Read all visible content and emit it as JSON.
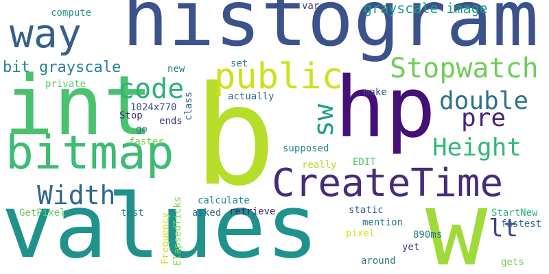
{
  "words": [
    {
      "id": "values",
      "text": "values",
      "color": "#20928c"
    },
    {
      "id": "histogram",
      "text": "histogram",
      "color": "#3b528b"
    },
    {
      "id": "b",
      "text": "b",
      "color": "#b5de2b"
    },
    {
      "id": "hp",
      "text": "hp",
      "color": "#440f76"
    },
    {
      "id": "w",
      "text": "w",
      "color": "#a0da39"
    },
    {
      "id": "int",
      "text": "int",
      "color": "#4ac16d"
    },
    {
      "id": "way",
      "text": "way",
      "color": "#35608d"
    },
    {
      "id": "bitmap",
      "text": "bitmap",
      "color": "#3dbc74"
    },
    {
      "id": "createtime",
      "text": "CreateTime",
      "color": "#472c7a"
    },
    {
      "id": "public",
      "text": "public",
      "color": "#cde11d"
    },
    {
      "id": "code",
      "text": "code",
      "color": "#2db27d"
    },
    {
      "id": "stopwatch",
      "text": "Stopwatch",
      "color": "#6ece58"
    },
    {
      "id": "double",
      "text": "double",
      "color": "#2c728e"
    },
    {
      "id": "pre",
      "text": "pre",
      "color": "#482475"
    },
    {
      "id": "height",
      "text": "Height",
      "color": "#35b779"
    },
    {
      "id": "width",
      "text": "Width",
      "color": "#31688e"
    },
    {
      "id": "lt",
      "text": "lt",
      "color": "#414487"
    },
    {
      "id": "bitgray",
      "text": "bit grayscale",
      "color": "#26828e"
    },
    {
      "id": "grayimg",
      "text": "grayscale image",
      "color": "#1f9e89"
    },
    {
      "id": "sw",
      "text": "sw",
      "color": "#1f9e89"
    },
    {
      "id": "compute",
      "text": "compute",
      "color": "#21918c"
    },
    {
      "id": "var",
      "text": "var",
      "color": "#46327e"
    },
    {
      "id": "new",
      "text": "new",
      "color": "#2a788e"
    },
    {
      "id": "set",
      "text": "set",
      "color": "#2a788e"
    },
    {
      "id": "private",
      "text": "private",
      "color": "#5ec962"
    },
    {
      "id": "make",
      "text": "make",
      "color": "#3e4989"
    },
    {
      "id": "actually",
      "text": "actually",
      "color": "#31688e"
    },
    {
      "id": "class",
      "text": "class",
      "color": "#33638d"
    },
    {
      "id": "r1024",
      "text": "1024x770",
      "color": "#39568c"
    },
    {
      "id": "stop",
      "text": "Stop",
      "color": "#482878"
    },
    {
      "id": "ends",
      "text": "ends",
      "color": "#443983"
    },
    {
      "id": "go",
      "text": "go",
      "color": "#2d708e"
    },
    {
      "id": "faster",
      "text": "faster",
      "color": "#7ad151"
    },
    {
      "id": "supposed",
      "text": "supposed",
      "color": "#25858e"
    },
    {
      "id": "edit",
      "text": "EDIT",
      "color": "#54c568"
    },
    {
      "id": "really",
      "text": "really",
      "color": "#b8de29"
    },
    {
      "id": "calculate",
      "text": "calculate",
      "color": "#228c8d"
    },
    {
      "id": "getpixel",
      "text": "GetPixel",
      "color": "#65cb5e"
    },
    {
      "id": "test",
      "text": "test",
      "color": "#277f8e"
    },
    {
      "id": "asked",
      "text": "asked",
      "color": "#31688e"
    },
    {
      "id": "retrieve",
      "text": "retrieve",
      "color": "#3f1b6c"
    },
    {
      "id": "static",
      "text": "static",
      "color": "#3b528b"
    },
    {
      "id": "startnew",
      "text": "StartNew",
      "color": "#2ab07f"
    },
    {
      "id": "mention",
      "text": "mention",
      "color": "#2c728e"
    },
    {
      "id": "fastest",
      "text": "fastest",
      "color": "#30698e"
    },
    {
      "id": "ms890",
      "text": "890ms",
      "color": "#2a7b8e"
    },
    {
      "id": "pixel",
      "text": "pixel",
      "color": "#d8e219"
    },
    {
      "id": "yet",
      "text": "yet",
      "color": "#433d84"
    },
    {
      "id": "around",
      "text": "around",
      "color": "#2a768e"
    },
    {
      "id": "gets",
      "text": "gets",
      "color": "#6ece58"
    },
    {
      "id": "elapsed",
      "text": "ElapsedTicks",
      "color": "#7fd34e"
    },
    {
      "id": "frequency",
      "text": "Frequency",
      "color": "#cfe11c"
    }
  ]
}
